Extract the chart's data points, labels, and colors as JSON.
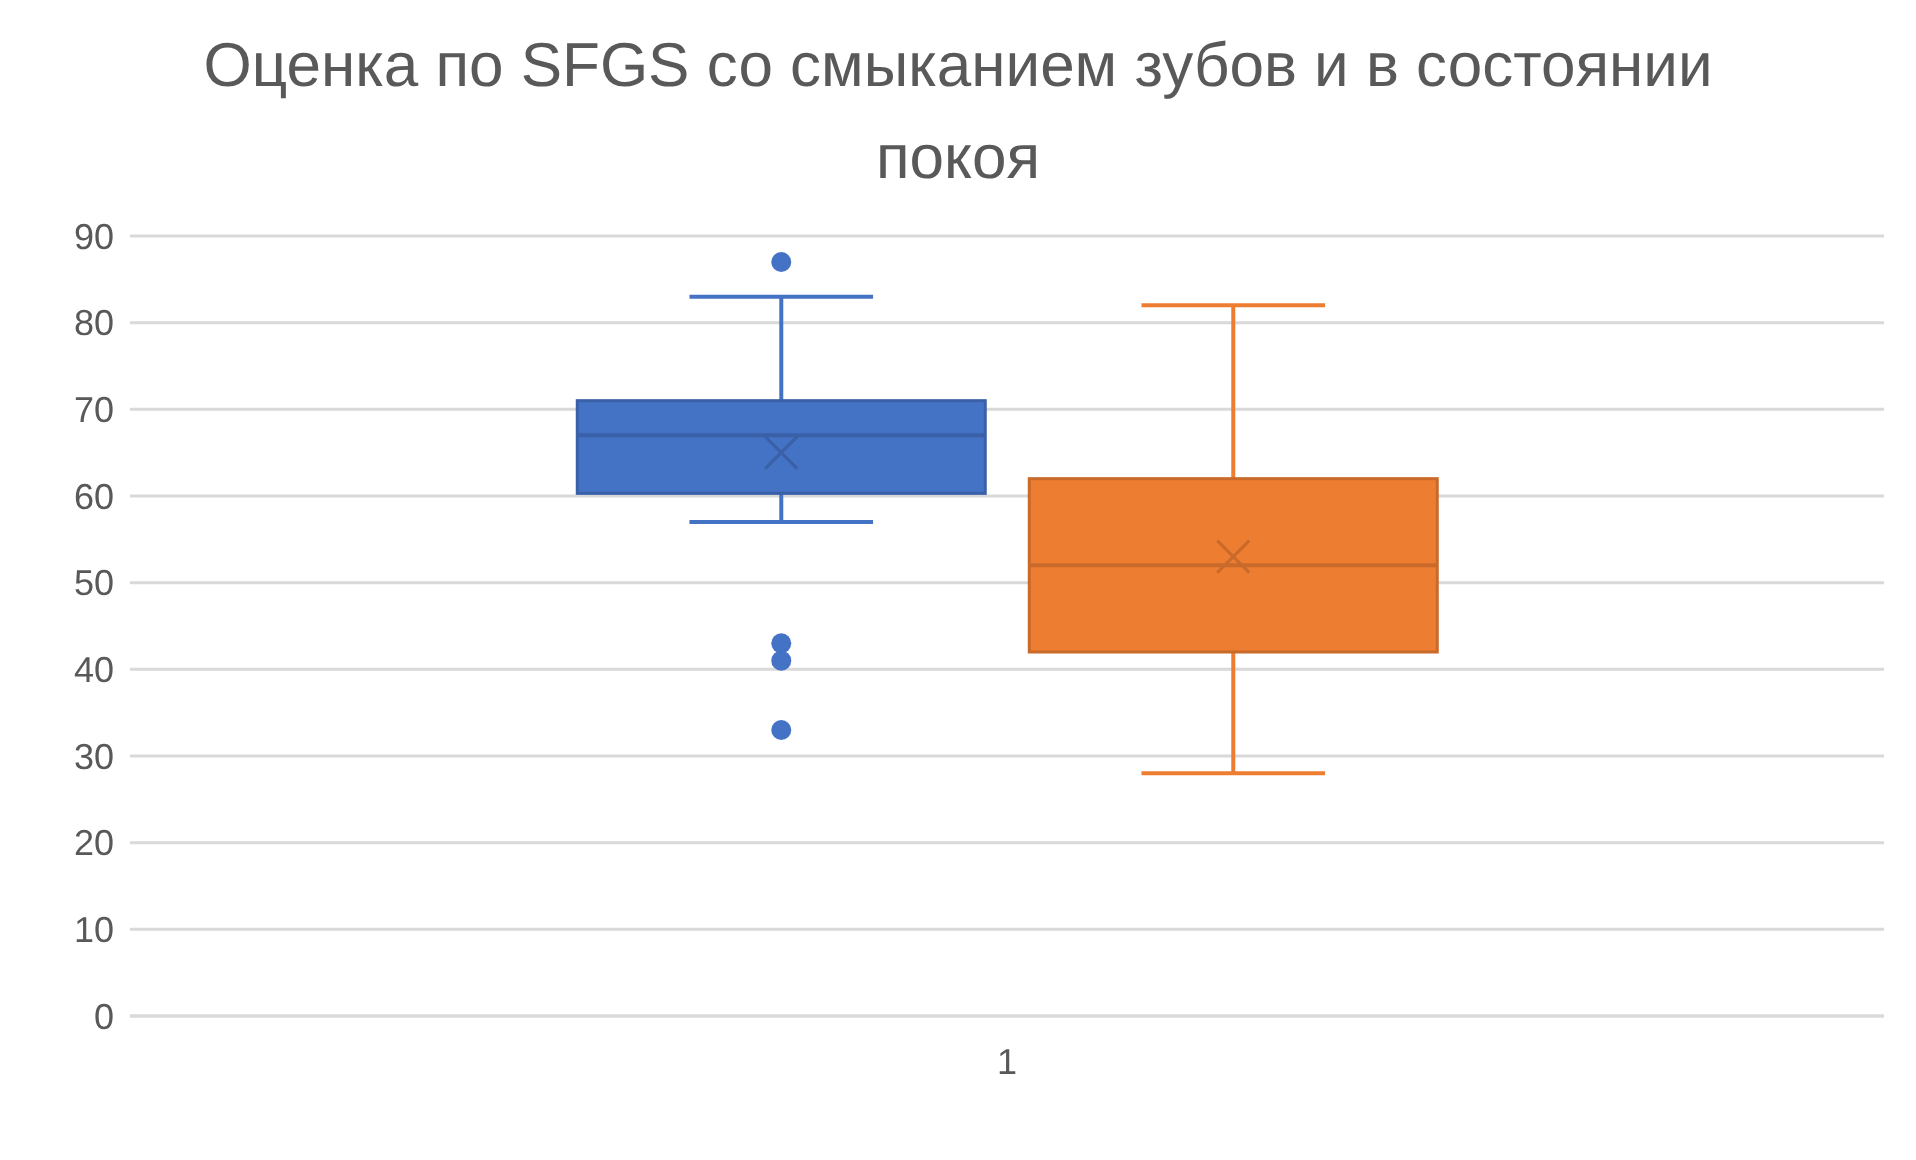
{
  "chart_data": {
    "type": "box",
    "title": "Оценка по SFGS со смыканием зубов и в состоянии покоя",
    "categories": [
      "1"
    ],
    "series": [
      {
        "color": "#4472c4",
        "boxes": [
          {
            "low": 57,
            "q1": 60.3,
            "median": 67,
            "q3": 71,
            "high": 83,
            "mean": 65,
            "outliers": [
              87,
              43,
              41,
              33
            ]
          }
        ]
      },
      {
        "color": "#ed7d31",
        "boxes": [
          {
            "low": 28,
            "q1": 42,
            "median": 52,
            "q3": 62,
            "high": 82,
            "mean": 53
          }
        ]
      }
    ],
    "ylim": [
      0,
      90
    ],
    "yticks": [
      0,
      10,
      20,
      30,
      40,
      50,
      60,
      70,
      80,
      90
    ],
    "grid": "y"
  }
}
